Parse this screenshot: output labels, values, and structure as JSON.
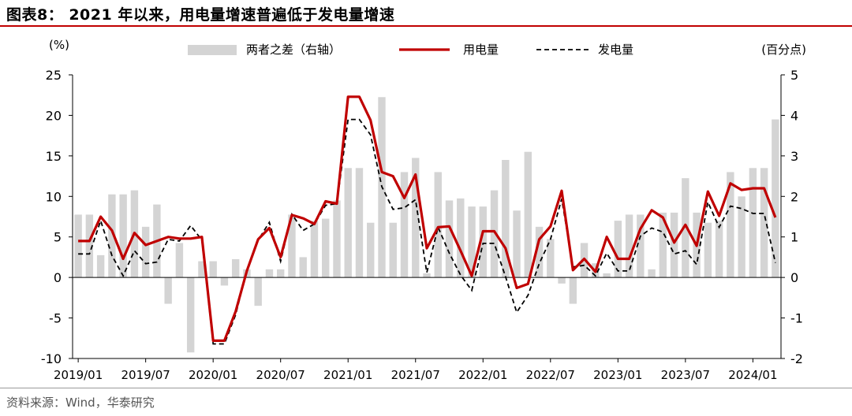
{
  "header": {
    "title": "图表8：  2021 年以来，用电量增速普遍低于发电量增速"
  },
  "footer": {
    "source": "资料来源：Wind，华泰研究"
  },
  "colors": {
    "consumption": "#c00000",
    "generation": "#000000",
    "gap_bar": "#d4d4d4",
    "accent_rule": "#c00000"
  },
  "chart_data": {
    "type": "bar+line",
    "left_unit": "(%)",
    "right_unit": "(百分点)",
    "y_left": {
      "range": [
        -10,
        25
      ],
      "ticks": [
        -10,
        -5,
        0,
        5,
        10,
        15,
        20,
        25
      ]
    },
    "y_right": {
      "range": [
        -2,
        5
      ],
      "ticks": [
        -2,
        -1,
        0,
        1,
        2,
        3,
        4,
        5
      ]
    },
    "x_tick_labels": [
      "2019/01",
      "2019/07",
      "2020/01",
      "2020/07",
      "2021/01",
      "2021/07",
      "2022/01",
      "2022/07",
      "2023/01",
      "2023/07",
      "2024/01"
    ],
    "legend": [
      "两者之差（右轴）",
      "用电量",
      "发电量"
    ],
    "months": [
      "2019/01",
      "2019/02",
      "2019/03",
      "2019/04",
      "2019/05",
      "2019/06",
      "2019/07",
      "2019/08",
      "2019/09",
      "2019/10",
      "2019/11",
      "2019/12",
      "2020/01",
      "2020/02",
      "2020/03",
      "2020/04",
      "2020/05",
      "2020/06",
      "2020/07",
      "2020/08",
      "2020/09",
      "2020/10",
      "2020/11",
      "2020/12",
      "2021/01",
      "2021/02",
      "2021/03",
      "2021/04",
      "2021/05",
      "2021/06",
      "2021/07",
      "2021/08",
      "2021/09",
      "2021/10",
      "2021/11",
      "2021/12",
      "2022/01",
      "2022/02",
      "2022/03",
      "2022/04",
      "2022/05",
      "2022/06",
      "2022/07",
      "2022/08",
      "2022/09",
      "2022/10",
      "2022/11",
      "2022/12",
      "2023/01",
      "2023/02",
      "2023/03",
      "2023/04",
      "2023/05",
      "2023/06",
      "2023/07",
      "2023/08",
      "2023/09",
      "2023/10",
      "2023/11",
      "2023/12",
      "2024/01",
      "2024/02",
      "2024/03"
    ],
    "series": [
      {
        "name": "两者之差（右轴）",
        "type": "bar",
        "axis": "right",
        "values": [
          1.55,
          1.55,
          0.55,
          2.05,
          2.05,
          2.15,
          1.25,
          1.8,
          -0.65,
          0.85,
          -1.85,
          0.4,
          0.4,
          -0.2,
          0.45,
          0.2,
          -0.7,
          0.2,
          0.2,
          1.55,
          0.5,
          1.4,
          1.45,
          1.9,
          2.7,
          2.7,
          1.35,
          4.45,
          1.35,
          2.6,
          2.95,
          0.1,
          2.6,
          1.9,
          1.95,
          1.75,
          1.75,
          2.15,
          2.9,
          1.65,
          3.1,
          1.25,
          0.95,
          -0.15,
          -0.65,
          0.85,
          0.35,
          0.1,
          1.4,
          1.55,
          1.55,
          0.2,
          1.6,
          1.6,
          2.45,
          1.6,
          1.35,
          1.4,
          2.6,
          2.0,
          2.7,
          2.7,
          3.9
        ]
      },
      {
        "name": "用电量",
        "type": "line",
        "axis": "left",
        "values": [
          4.5,
          4.5,
          7.5,
          5.8,
          2.3,
          5.5,
          4.0,
          4.5,
          5.0,
          4.8,
          4.8,
          5.0,
          -7.8,
          -7.8,
          -4.2,
          0.8,
          4.7,
          6.1,
          2.5,
          7.7,
          7.3,
          6.6,
          9.4,
          9.1,
          22.3,
          22.3,
          19.4,
          13.0,
          12.5,
          9.8,
          12.7,
          3.6,
          6.2,
          6.3,
          3.3,
          0.2,
          5.7,
          5.7,
          3.6,
          -1.3,
          -0.8,
          4.7,
          6.3,
          10.7,
          0.9,
          2.3,
          0.7,
          5.0,
          2.3,
          2.3,
          6.0,
          8.3,
          7.4,
          4.3,
          6.5,
          3.9,
          10.6,
          7.6,
          11.6,
          10.8,
          11.0,
          11.0,
          7.4
        ]
      },
      {
        "name": "发电量",
        "type": "line",
        "axis": "left",
        "values": [
          2.9,
          2.9,
          7.0,
          2.7,
          0.2,
          3.3,
          1.7,
          1.9,
          4.7,
          4.5,
          6.4,
          4.6,
          -8.2,
          -8.2,
          -4.6,
          0.9,
          4.6,
          6.8,
          2.0,
          7.8,
          5.8,
          6.6,
          8.9,
          9.1,
          19.5,
          19.5,
          17.6,
          11.2,
          8.4,
          8.6,
          9.6,
          0.6,
          6.2,
          3.0,
          0.3,
          -1.6,
          4.2,
          4.2,
          0.1,
          -4.3,
          -2.2,
          1.7,
          4.7,
          9.7,
          1.3,
          1.5,
          0.2,
          3.0,
          0.8,
          0.8,
          5.1,
          6.1,
          5.6,
          2.9,
          3.3,
          1.6,
          9.3,
          6.2,
          8.8,
          8.5,
          7.9,
          7.9,
          1.8
        ]
      }
    ]
  }
}
